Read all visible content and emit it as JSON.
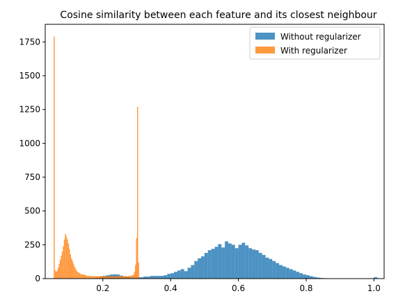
{
  "colors": {
    "without": "#1f77b4",
    "with": "#ff7f0e",
    "axis": "#000000",
    "background": "#ffffff"
  },
  "chart_data": {
    "type": "bar",
    "title": "Cosine similarity between each feature and its closest neighbour",
    "xlabel": "",
    "ylabel": "",
    "xlim": [
      0.03,
      1.03
    ],
    "ylim": [
      0,
      1880
    ],
    "grid": false,
    "legend_position": "top-right",
    "xticks": [
      {
        "value": 0.2,
        "label": "0.2"
      },
      {
        "value": 0.4,
        "label": "0.4"
      },
      {
        "value": 0.6,
        "label": "0.6"
      },
      {
        "value": 0.8,
        "label": "0.8"
      },
      {
        "value": 1.0,
        "label": "1.0"
      }
    ],
    "yticks": [
      {
        "value": 0,
        "label": "0"
      },
      {
        "value": 250,
        "label": "250"
      },
      {
        "value": 500,
        "label": "500"
      },
      {
        "value": 750,
        "label": "750"
      },
      {
        "value": 1000,
        "label": "1000"
      },
      {
        "value": 1250,
        "label": "1250"
      },
      {
        "value": 1500,
        "label": "1500"
      },
      {
        "value": 1750,
        "label": "1750"
      }
    ],
    "series": [
      {
        "name": "Without regularizer",
        "color": "#1f77b4",
        "opacity": 0.8,
        "bin_start": 0.1,
        "bin_width": 0.01,
        "values": [
          0,
          0,
          0,
          0,
          0,
          0,
          0,
          0,
          5,
          15,
          20,
          25,
          30,
          32,
          30,
          22,
          15,
          12,
          10,
          8,
          10,
          10,
          15,
          15,
          20,
          20,
          20,
          20,
          25,
          35,
          40,
          50,
          60,
          70,
          55,
          80,
          100,
          130,
          150,
          165,
          190,
          210,
          220,
          235,
          255,
          230,
          275,
          260,
          250,
          225,
          250,
          265,
          245,
          225,
          215,
          210,
          190,
          175,
          155,
          145,
          130,
          115,
          100,
          90,
          80,
          70,
          60,
          50,
          40,
          30,
          25,
          18,
          12,
          8,
          5,
          3,
          2,
          1,
          0,
          0,
          0,
          0,
          0,
          0,
          0,
          0,
          0,
          0,
          0,
          0,
          10
        ]
      },
      {
        "name": "With regularizer",
        "color": "#ff7f0e",
        "opacity": 0.8,
        "bin_start": 0.055,
        "bin_width": 0.003,
        "values": [
          1790,
          60,
          50,
          60,
          80,
          110,
          140,
          170,
          200,
          240,
          290,
          330,
          310,
          290,
          260,
          220,
          180,
          150,
          130,
          110,
          90,
          75,
          60,
          50,
          45,
          40,
          35,
          32,
          30,
          30,
          28,
          25,
          22,
          20,
          20,
          20,
          20,
          18,
          18,
          18,
          18,
          18,
          18,
          18,
          18,
          18,
          18,
          18,
          18,
          18,
          18,
          18,
          18,
          18,
          18,
          18,
          18,
          18,
          18,
          18,
          18,
          18,
          18,
          18,
          18,
          18,
          18,
          18,
          18,
          18,
          18,
          18,
          18,
          18,
          20,
          20,
          22,
          25,
          30,
          50,
          100,
          300,
          1270,
          120
        ]
      }
    ]
  }
}
